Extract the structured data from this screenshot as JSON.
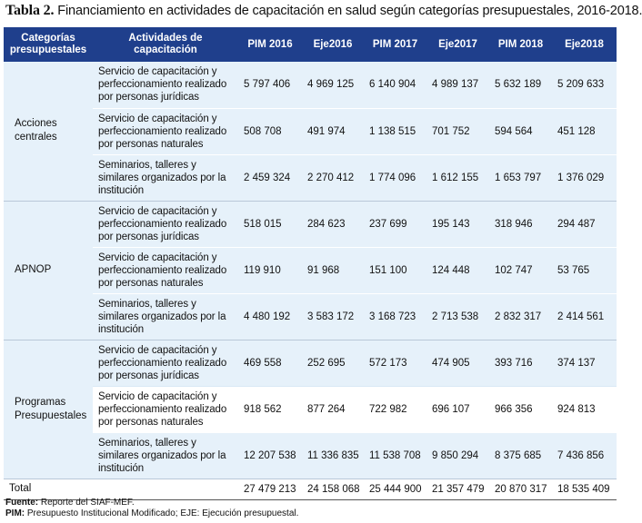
{
  "title": {
    "label": "Tabla 2.",
    "text": "Financiamiento en actividades de capacitación en salud según categorías presupuestales, 2016-2018."
  },
  "header": {
    "cat": "Categorías presupuestales",
    "act": "Actividades de capacitación",
    "cols": [
      "PIM 2016",
      "Eje2016",
      "PIM 2017",
      "Eje2017",
      "PIM 2018",
      "Eje2018"
    ]
  },
  "groups": [
    {
      "name": "Acciones centrales",
      "rows": [
        {
          "act": "Servicio de capacitación y perfeccionamiento realizado por personas jurídicas",
          "v": [
            "5 797 406",
            "4 969 125",
            "6 140 904",
            "4 989 137",
            "5 632 189",
            "5 209 633"
          ]
        },
        {
          "act": "Servicio de capacitación y perfeccionamiento realizado por personas naturales",
          "v": [
            "508 708",
            "491 974",
            "1 138 515",
            "701 752",
            "594 564",
            "451 128"
          ]
        },
        {
          "act": "Seminarios, talleres y similares organizados por la institución",
          "v": [
            "2 459 324",
            "2 270 412",
            "1 774 096",
            "1 612 155",
            "1 653 797",
            "1 376 029"
          ]
        }
      ]
    },
    {
      "name": "APNOP",
      "rows": [
        {
          "act": "Servicio de capacitación y perfeccionamiento realizado por personas jurídicas",
          "v": [
            "518 015",
            "284 623",
            "237 699",
            "195 143",
            "318 946",
            "294 487"
          ]
        },
        {
          "act": "Servicio de capacitación y perfeccionamiento realizado por personas naturales",
          "v": [
            "119 910",
            "91 968",
            "151 100",
            "124 448",
            "102 747",
            "53 765"
          ]
        },
        {
          "act": "Seminarios, talleres y similares organizados por la institución",
          "v": [
            "4 480 192",
            "3 583 172",
            "3 168 723",
            "2 713 538",
            "2 832 317",
            "2 414 561"
          ]
        }
      ]
    },
    {
      "name": "Programas Presupuestales",
      "rows": [
        {
          "act": "Servicio de capacitación y perfeccionamiento realizado por personas jurídicas",
          "v": [
            "469 558",
            "252 695",
            "572 173",
            "474 905",
            "393 716",
            "374 137"
          ]
        },
        {
          "act": "Servicio de capacitación y perfeccionamiento realizado por personas naturales",
          "v": [
            "918 562",
            "877 264",
            "722 982",
            "696 107",
            "966 356",
            "924 813"
          ]
        },
        {
          "act": "Seminarios, talleres y similares organizados por la institución",
          "v": [
            "12 207 538",
            "11 336 835",
            "11 538 708",
            "9 850 294",
            "8 375 685",
            "7 436 856"
          ]
        }
      ]
    }
  ],
  "total": {
    "label": "Total",
    "v": [
      "27 479 213",
      "24 158 068",
      "25 444 900",
      "21 357 479",
      "20 870 317",
      "18 535 409"
    ]
  },
  "notes": {
    "source_label": "Fuente:",
    "source_text": "Reporte del SIAF-MEF.",
    "pim_label": "PIM:",
    "pim_text": "Presupuesto Institucional Modificado; EJE: Ejecución presupuestal."
  },
  "colors": {
    "header_bg": "#1f3f8c",
    "row_tint": "#e6f1fa"
  }
}
